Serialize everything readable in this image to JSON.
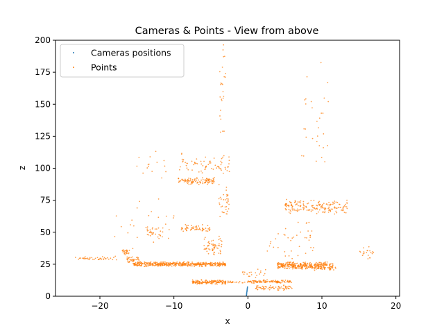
{
  "chart_data": {
    "type": "scatter",
    "title": "Cameras & Points - View from above",
    "xlabel": "x",
    "ylabel": "z",
    "xlim": [
      -26,
      20.5
    ],
    "ylim": [
      0,
      200
    ],
    "x_ticks": [
      -20,
      -10,
      0,
      10,
      20
    ],
    "y_ticks": [
      0,
      25,
      50,
      75,
      100,
      125,
      150,
      175,
      200
    ],
    "grid": false,
    "legend": {
      "placement": "top-left",
      "entries": [
        "Cameras positions",
        "Points"
      ]
    },
    "series": [
      {
        "name": "Cameras positions",
        "color": "#1f77b4",
        "points": [
          [
            -0.2,
            0.3
          ],
          [
            -0.2,
            0.8
          ],
          [
            -0.18,
            1.3
          ],
          [
            -0.18,
            1.8
          ],
          [
            -0.16,
            2.3
          ],
          [
            -0.16,
            2.8
          ],
          [
            -0.14,
            3.3
          ],
          [
            -0.12,
            3.8
          ],
          [
            -0.12,
            4.3
          ],
          [
            -0.1,
            4.8
          ],
          [
            -0.1,
            5.3
          ],
          [
            -0.08,
            5.8
          ],
          [
            -0.08,
            6.3
          ],
          [
            -0.06,
            6.8
          ],
          [
            -0.05,
            7.3
          ]
        ]
      },
      {
        "name": "Points",
        "color": "#ff7f0e",
        "clusters": [
          {
            "x": [
              -15.5,
              -3.0
            ],
            "z": [
              23,
              27
            ],
            "n": 450
          },
          {
            "x": [
              -16.5,
              -14.5
            ],
            "z": [
              26,
              31
            ],
            "n": 40
          },
          {
            "x": [
              -23.5,
              -17.5
            ],
            "z": [
              28,
              31.5
            ],
            "n": 40
          },
          {
            "x": [
              -17.0,
              -16.0
            ],
            "z": [
              32,
              37
            ],
            "n": 25
          },
          {
            "x": [
              -7.5,
              -3.0
            ],
            "z": [
              9,
              13
            ],
            "n": 150
          },
          {
            "x": [
              -3.5,
              0.0
            ],
            "z": [
              10,
              12
            ],
            "n": 25
          },
          {
            "x": [
              0.0,
              6.0
            ],
            "z": [
              10,
              13
            ],
            "n": 110
          },
          {
            "x": [
              1.0,
              6.0
            ],
            "z": [
              4,
              9
            ],
            "n": 70
          },
          {
            "x": [
              4.0,
              11.5
            ],
            "z": [
              21,
              27
            ],
            "n": 320
          },
          {
            "x": [
              9.0,
              12.0
            ],
            "z": [
              20,
              23
            ],
            "n": 30
          },
          {
            "x": [
              5.0,
              13.5
            ],
            "z": [
              64,
              76
            ],
            "n": 180
          },
          {
            "x": [
              -9.5,
              -4.5
            ],
            "z": [
              87,
              93
            ],
            "n": 110
          },
          {
            "x": [
              -9.5,
              -2.5
            ],
            "z": [
              94,
              112
            ],
            "n": 70
          },
          {
            "x": [
              -9.0,
              -5.0
            ],
            "z": [
              50,
              56
            ],
            "n": 60
          },
          {
            "x": [
              -14.0,
              -11.5
            ],
            "z": [
              44,
              55
            ],
            "n": 30
          },
          {
            "x": [
              -6.0,
              -3.5
            ],
            "z": [
              30,
              48
            ],
            "n": 60
          },
          {
            "x": [
              -4.0,
              -2.5
            ],
            "z": [
              60,
              88
            ],
            "n": 35
          },
          {
            "x": [
              -3.8,
              -3.0
            ],
            "z": [
              120,
              200
            ],
            "n": 25
          },
          {
            "x": [
              -15.0,
              -11.0
            ],
            "z": [
              85,
              115
            ],
            "n": 15
          },
          {
            "x": [
              7.0,
              11.0
            ],
            "z": [
              95,
              190
            ],
            "n": 30
          },
          {
            "x": [
              15.0,
              17.0
            ],
            "z": [
              28,
              40
            ],
            "n": 20
          },
          {
            "x": [
              2.5,
              9.0
            ],
            "z": [
              27,
              65
            ],
            "n": 40
          },
          {
            "x": [
              -1.0,
              2.5
            ],
            "z": [
              14,
              22
            ],
            "n": 20
          },
          {
            "x": [
              -18.0,
              -10.0
            ],
            "z": [
              35,
              80
            ],
            "n": 25
          }
        ]
      }
    ]
  }
}
